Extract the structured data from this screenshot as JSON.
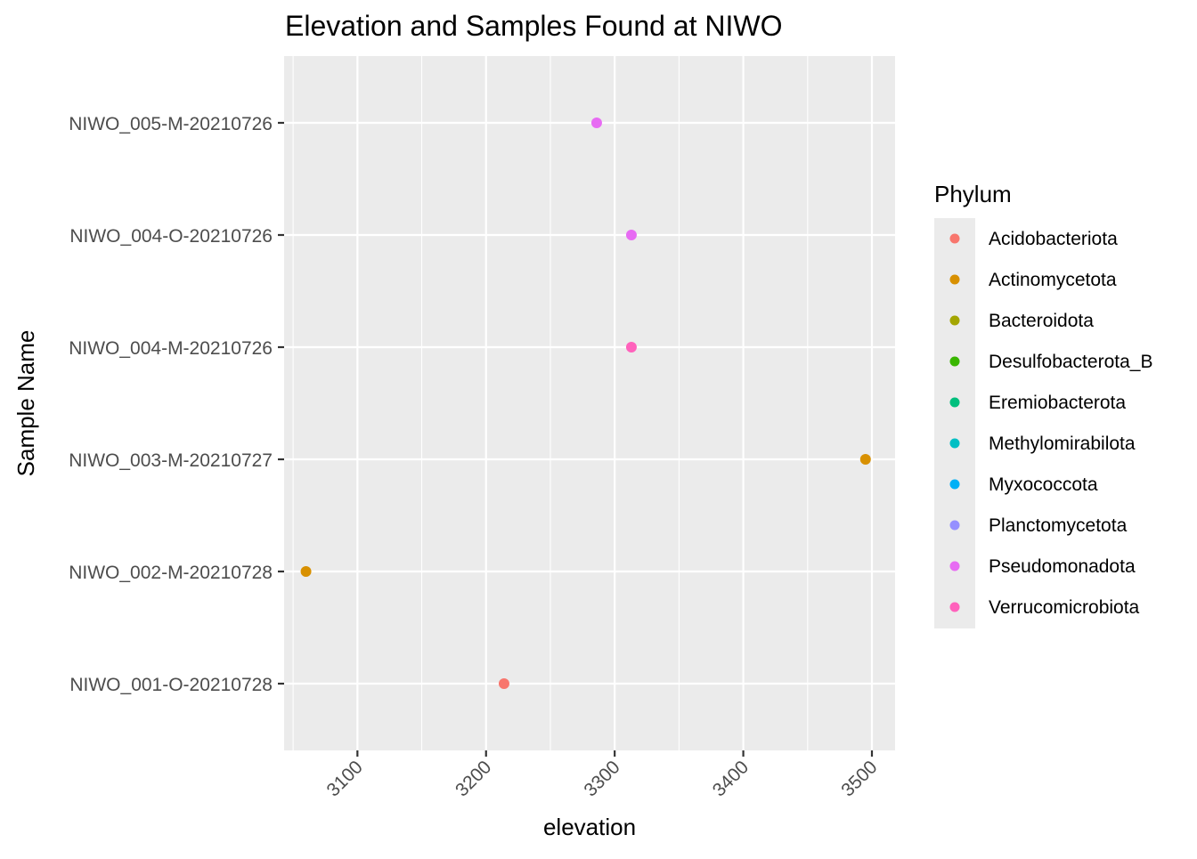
{
  "chart_data": {
    "type": "scatter",
    "title": "Elevation and Samples Found at NIWO",
    "xlabel": "elevation",
    "ylabel": "Sample Name",
    "xlim": [
      3043,
      3518
    ],
    "x_ticks": [
      3100,
      3200,
      3300,
      3400,
      3500
    ],
    "categories": [
      "NIWO_001-O-20210728",
      "NIWO_002-M-20210728",
      "NIWO_003-M-20210727",
      "NIWO_004-M-20210726",
      "NIWO_004-O-20210726",
      "NIWO_005-M-20210726"
    ],
    "grid": true,
    "legend": {
      "title": "Phylum",
      "placement": "right",
      "entries": [
        {
          "name": "Acidobacteriota",
          "color": "#F8766D"
        },
        {
          "name": "Actinomycetota",
          "color": "#D89000"
        },
        {
          "name": "Bacteroidota",
          "color": "#A3A500"
        },
        {
          "name": "Desulfobacterota_B",
          "color": "#39B600"
        },
        {
          "name": "Eremiobacterota",
          "color": "#00BF7D"
        },
        {
          "name": "Methylomirabilota",
          "color": "#00BFC4"
        },
        {
          "name": "Myxococcota",
          "color": "#00B0F6"
        },
        {
          "name": "Planctomycetota",
          "color": "#9590FF"
        },
        {
          "name": "Pseudomonadota",
          "color": "#E76BF3"
        },
        {
          "name": "Verrucomicrobiota",
          "color": "#FF62BC"
        }
      ]
    },
    "points": [
      {
        "sample": "NIWO_005-M-20210726",
        "elevation": 3286,
        "phylum": "Pseudomonadota"
      },
      {
        "sample": "NIWO_004-O-20210726",
        "elevation": 3313,
        "phylum": "Pseudomonadota"
      },
      {
        "sample": "NIWO_004-M-20210726",
        "elevation": 3313,
        "phylum": "Verrucomicrobiota"
      },
      {
        "sample": "NIWO_003-M-20210727",
        "elevation": 3495,
        "phylum": "Actinomycetota"
      },
      {
        "sample": "NIWO_002-M-20210728",
        "elevation": 3060,
        "phylum": "Actinomycetota"
      },
      {
        "sample": "NIWO_001-O-20210728",
        "elevation": 3214,
        "phylum": "Acidobacteriota"
      }
    ]
  }
}
